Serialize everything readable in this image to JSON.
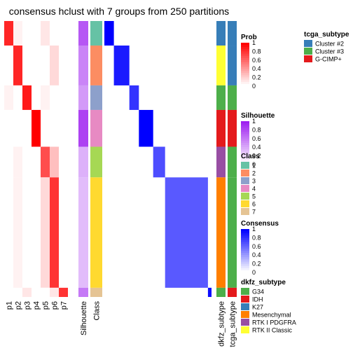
{
  "chart_data": {
    "type": "heatmap",
    "title": "consensus hclust with 7 groups from 250 partitions",
    "column_labels": [
      "p1",
      "p2",
      "p3",
      "p4",
      "p5",
      "p6",
      "p7",
      "Silhouette",
      "Class",
      "dkfz_subtype",
      "tcga_subtype"
    ],
    "class_blocks": [
      {
        "class": "1",
        "rows": 16,
        "prob": [
          0.85,
          0.05,
          0,
          0,
          0.1,
          0,
          0
        ],
        "silhouette": 0.75,
        "dkfz": "K27",
        "tcga": "Cluster #2"
      },
      {
        "class": "2",
        "rows": 26,
        "prob": [
          0,
          0.85,
          0,
          0,
          0,
          0.15,
          0
        ],
        "silhouette": 0.55,
        "dkfz": "RTK II Classic",
        "tcga": "Cluster #2"
      },
      {
        "class": "3",
        "rows": 16,
        "prob": [
          0.05,
          0,
          0.9,
          0,
          0.05,
          0,
          0
        ],
        "silhouette": 0.45,
        "dkfz": "G34",
        "tcga": "Cluster #3"
      },
      {
        "class": "4",
        "rows": 24,
        "prob": [
          0,
          0,
          0,
          1,
          0,
          0,
          0
        ],
        "silhouette": 0.85,
        "dkfz": "IDH",
        "tcga": "G-CIMP+"
      },
      {
        "class": "5",
        "rows": 20,
        "prob": [
          0,
          0.05,
          0,
          0,
          0.7,
          0.25,
          0
        ],
        "silhouette": 0.35,
        "dkfz": "RTK I PDGFRA",
        "tcga": "Cluster #3"
      },
      {
        "class": "6",
        "rows": 72,
        "prob": [
          0,
          0.05,
          0,
          0,
          0.15,
          0.8,
          0
        ],
        "silhouette": 0.3,
        "dkfz": "Mesenchymal",
        "tcga": "Cluster #3"
      },
      {
        "class": "7",
        "rows": 6,
        "prob": [
          0,
          0,
          0.1,
          0,
          0,
          0.1,
          0.8
        ],
        "silhouette": 0.6,
        "dkfz": "G34",
        "tcga": "G-CIMP+"
      }
    ],
    "legends": {
      "prob": {
        "title": "Prob",
        "ticks": [
          "1",
          "0.8",
          "0.6",
          "0.4",
          "0.2",
          "0"
        ]
      },
      "silhouette": {
        "title": "Silhouette",
        "ticks": [
          "1",
          "0.8",
          "0.6",
          "0.4",
          "0.2",
          "0"
        ]
      },
      "class": {
        "title": "Class",
        "items": [
          {
            "label": "1",
            "color": "#66C2A5"
          },
          {
            "label": "2",
            "color": "#FC8D62"
          },
          {
            "label": "3",
            "color": "#8DA0CB"
          },
          {
            "label": "4",
            "color": "#E78AC3"
          },
          {
            "label": "5",
            "color": "#A6D854"
          },
          {
            "label": "6",
            "color": "#FFD92F"
          },
          {
            "label": "7",
            "color": "#E5C494"
          }
        ]
      },
      "consensus": {
        "title": "Consensus",
        "ticks": [
          "1",
          "0.8",
          "0.6",
          "0.4",
          "0.2",
          "0"
        ]
      },
      "dkfz_subtype": {
        "title": "dkfz_subtype",
        "items": [
          {
            "label": "G34",
            "color": "#4DAF4A"
          },
          {
            "label": "IDH",
            "color": "#E41A1C"
          },
          {
            "label": "K27",
            "color": "#377EB8"
          },
          {
            "label": "Mesenchymal",
            "color": "#FF7F00"
          },
          {
            "label": "RTK I PDGFRA",
            "color": "#984EA3"
          },
          {
            "label": "RTK II Classic",
            "color": "#FFFF33"
          }
        ]
      },
      "tcga_subtype": {
        "title": "tcga_subtype",
        "items": [
          {
            "label": "Cluster #2",
            "color": "#377EB8"
          },
          {
            "label": "Cluster #3",
            "color": "#4DAF4A"
          },
          {
            "label": "G-CIMP+",
            "color": "#E41A1C"
          }
        ]
      }
    },
    "colors": {
      "prob_high": "#FF0000",
      "silhouette_high": "#9E1FF0",
      "consensus_high": "#0000FF",
      "low": "#FFFFFF"
    }
  }
}
